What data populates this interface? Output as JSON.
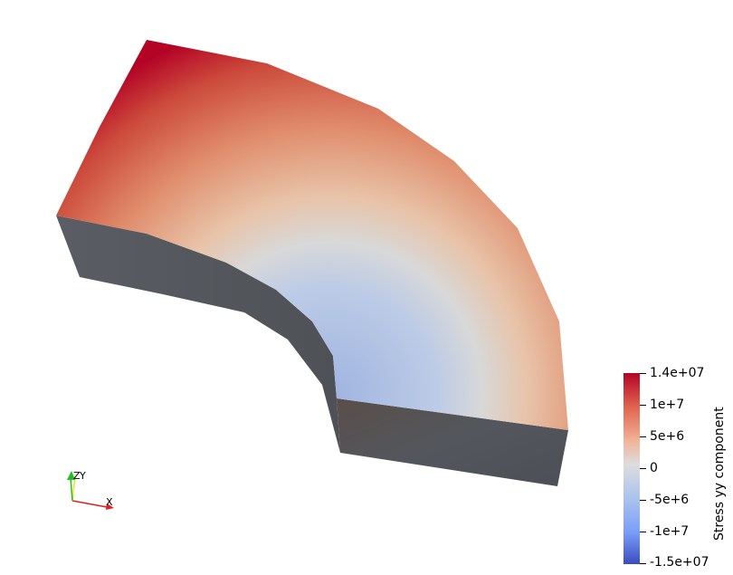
{
  "scalar_bar": {
    "title": "Stress yy component",
    "labels": [
      "1.4e+07",
      "1e+7",
      "5e+6",
      "0",
      "-5e+6",
      "-1e+7",
      "-1.5e+07"
    ],
    "colors": {
      "max": "#b40426",
      "mid": "#dddddd",
      "min": "#3b4cc0"
    }
  },
  "orientation_axes": {
    "x_label": "X",
    "y_label": "Y",
    "z_label": "Z",
    "x_color": "#e02020",
    "y_color": "#f0f020",
    "z_color": "#20c020"
  },
  "geometry_colors": {
    "side_face": "#555a60"
  }
}
